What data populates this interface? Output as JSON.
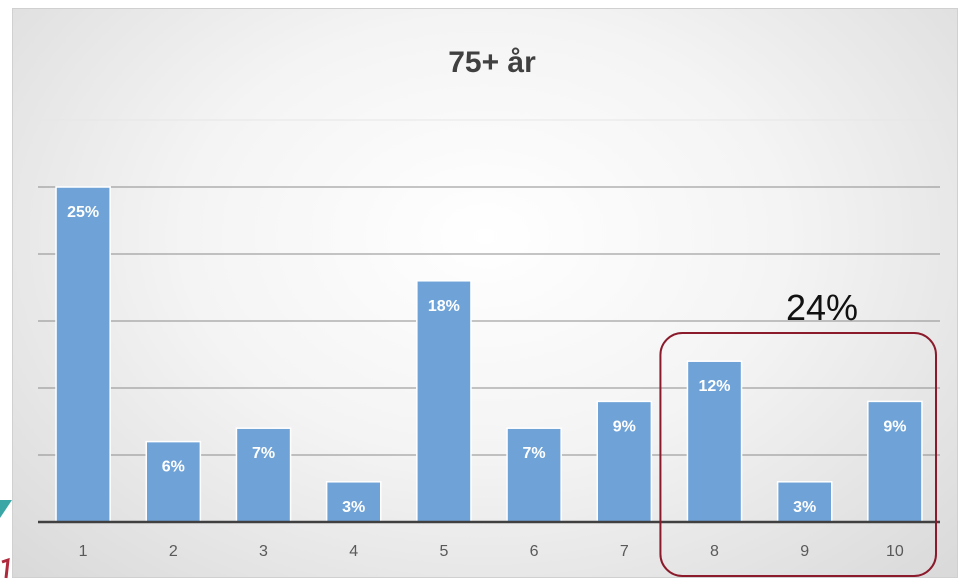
{
  "chart_data": {
    "type": "bar",
    "title": "75+ år",
    "categories": [
      "1",
      "2",
      "3",
      "4",
      "5",
      "6",
      "7",
      "8",
      "9",
      "10"
    ],
    "values": [
      25,
      6,
      7,
      3,
      18,
      7,
      9,
      12,
      3,
      9
    ],
    "data_labels": [
      "25%",
      "6%",
      "7%",
      "3%",
      "18%",
      "7%",
      "9%",
      "12%",
      "3%",
      "9%"
    ],
    "ylim": [
      0,
      30
    ],
    "grid": true,
    "bar_color": "#6fa3d8",
    "annotation": {
      "text": "24%",
      "covers_categories": [
        "8",
        "9",
        "10"
      ],
      "box_color": "#8b1a2b"
    }
  }
}
